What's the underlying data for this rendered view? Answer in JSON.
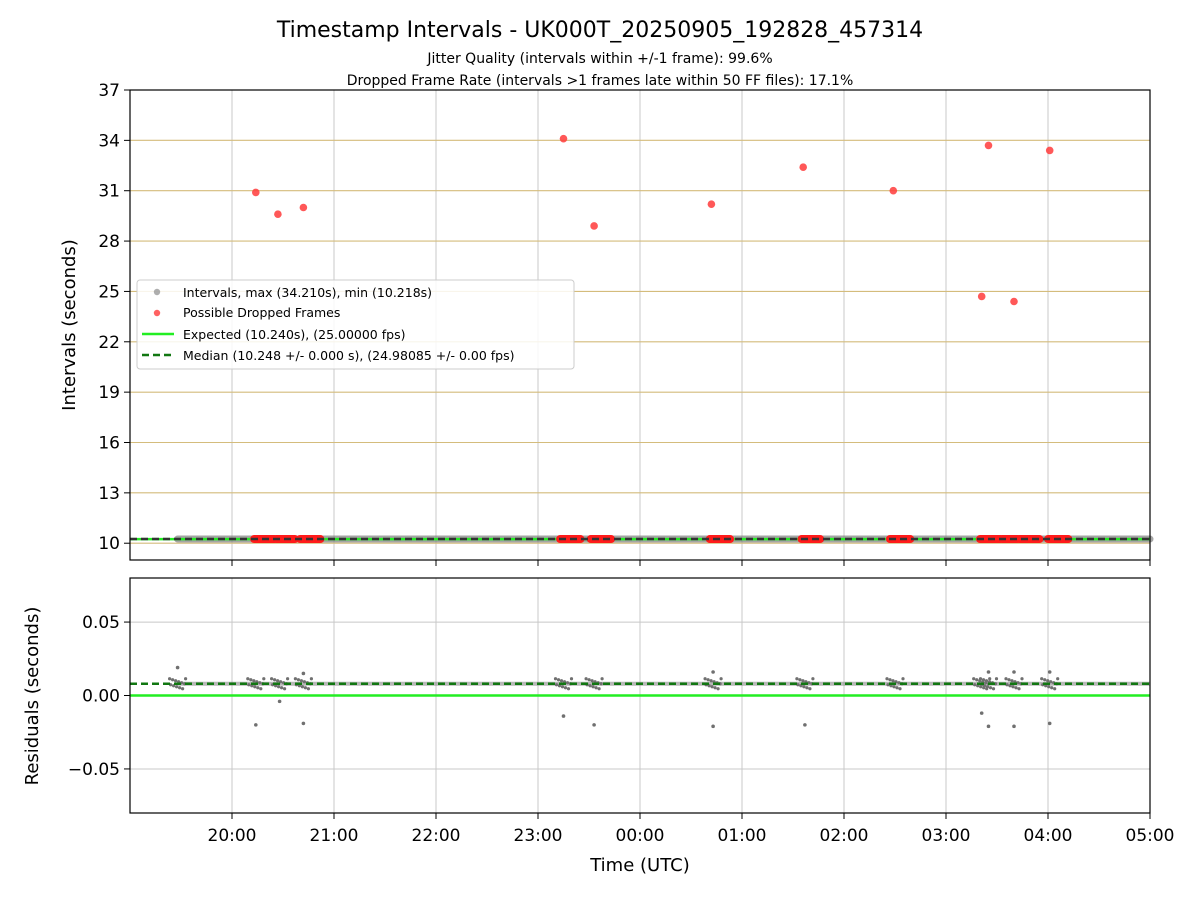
{
  "figure": {
    "title": "Timestamp Intervals - UK000T_20250905_192828_457314",
    "subtitle_1": "Jitter Quality (intervals within +/-1 frame): 99.6%",
    "subtitle_2": "Dropped Frame Rate (intervals >1 frames late within 50 FF files): 17.1%"
  },
  "chart_data": [
    {
      "type": "scatter",
      "panel": "top",
      "ylabel": "Intervals (seconds)",
      "xlabel": "",
      "ylim": [
        9,
        37
      ],
      "xlim": [
        "19:00",
        "05:00"
      ],
      "yticks": [
        "10",
        "13",
        "16",
        "19",
        "22",
        "25",
        "28",
        "31",
        "34",
        "37"
      ],
      "grid": "on",
      "legend_position": "center-left",
      "legend": [
        "Intervals, max (34.210s), min (10.218s)",
        "Possible Dropped Frames",
        "Expected (10.240s), (25.00000 fps)",
        "Median (10.248 +/- 0.000 s), (24.98085 +/- 0.00 fps)"
      ],
      "series": [
        {
          "name": "Intervals, max (34.210s), min (10.218s)",
          "color": "#808080",
          "x_range": [
            "19:28",
            "05:00"
          ],
          "y_approx": 10.248
        },
        {
          "name": "Possible Dropped Frames",
          "color": "#ff3b3b",
          "points": [
            {
              "x": "20:14",
              "y": 30.9
            },
            {
              "x": "20:27",
              "y": 29.6
            },
            {
              "x": "20:42",
              "y": 30.0
            },
            {
              "x": "23:15",
              "y": 34.1
            },
            {
              "x": "23:33",
              "y": 28.9
            },
            {
              "x": "00:42",
              "y": 30.2
            },
            {
              "x": "01:36",
              "y": 32.4
            },
            {
              "x": "02:29",
              "y": 31.0
            },
            {
              "x": "03:21",
              "y": 24.7
            },
            {
              "x": "03:25",
              "y": 33.7
            },
            {
              "x": "03:40",
              "y": 24.4
            },
            {
              "x": "04:01",
              "y": 33.4
            }
          ],
          "clusters_near_baseline": [
            [
              "20:13",
              "20:25"
            ],
            [
              "20:26",
              "20:37"
            ],
            [
              "20:40",
              "20:52"
            ],
            [
              "23:13",
              "23:25"
            ],
            [
              "23:31",
              "23:43"
            ],
            [
              "00:41",
              "00:53"
            ],
            [
              "01:35",
              "01:46"
            ],
            [
              "02:27",
              "02:39"
            ],
            [
              "03:20",
              "03:32"
            ],
            [
              "03:33",
              "03:42"
            ],
            [
              "03:43",
              "03:55"
            ],
            [
              "04:00",
              "04:12"
            ]
          ]
        },
        {
          "name": "Expected (10.240s), (25.00000 fps)",
          "color": "#22ee22",
          "y": 10.24
        },
        {
          "name": "Median (10.248 +/- 0.000 s), (24.98085 +/- 0.00 fps)",
          "color": "#117711",
          "y": 10.248
        }
      ]
    },
    {
      "type": "scatter",
      "panel": "bottom",
      "ylabel": "Residuals (seconds)",
      "xlabel": "Time (UTC)",
      "ylim": [
        -0.08,
        0.08
      ],
      "yticks": [
        "0.05",
        "0.00",
        "−0.05"
      ],
      "xticks": [
        "20:00",
        "21:00",
        "22:00",
        "23:00",
        "00:00",
        "01:00",
        "02:00",
        "03:00",
        "04:00",
        "05:00"
      ],
      "grid": "on",
      "expected_residual": 0.0,
      "median_residual": 0.008,
      "series": [
        {
          "name": "Residuals",
          "color": "#707070",
          "points": [
            {
              "x": "19:28",
              "y": 0.019
            },
            {
              "x": "20:14",
              "y": -0.02
            },
            {
              "x": "20:28",
              "y": -0.004
            },
            {
              "x": "20:42",
              "y": 0.015
            },
            {
              "x": "20:42",
              "y": -0.019
            },
            {
              "x": "23:15",
              "y": -0.014
            },
            {
              "x": "23:33",
              "y": -0.02
            },
            {
              "x": "00:43",
              "y": 0.016
            },
            {
              "x": "00:43",
              "y": -0.021
            },
            {
              "x": "01:37",
              "y": -0.02
            },
            {
              "x": "03:21",
              "y": -0.012
            },
            {
              "x": "03:25",
              "y": 0.016
            },
            {
              "x": "03:25",
              "y": -0.021
            },
            {
              "x": "03:40",
              "y": 0.016
            },
            {
              "x": "03:40",
              "y": -0.021
            },
            {
              "x": "04:01",
              "y": 0.016
            },
            {
              "x": "04:01",
              "y": -0.019
            }
          ],
          "dense_clusters": [
            "19:28",
            "20:14",
            "20:28",
            "20:42",
            "23:15",
            "23:33",
            "00:43",
            "01:37",
            "02:30",
            "03:21",
            "03:25",
            "03:40",
            "04:01"
          ]
        }
      ]
    }
  ]
}
